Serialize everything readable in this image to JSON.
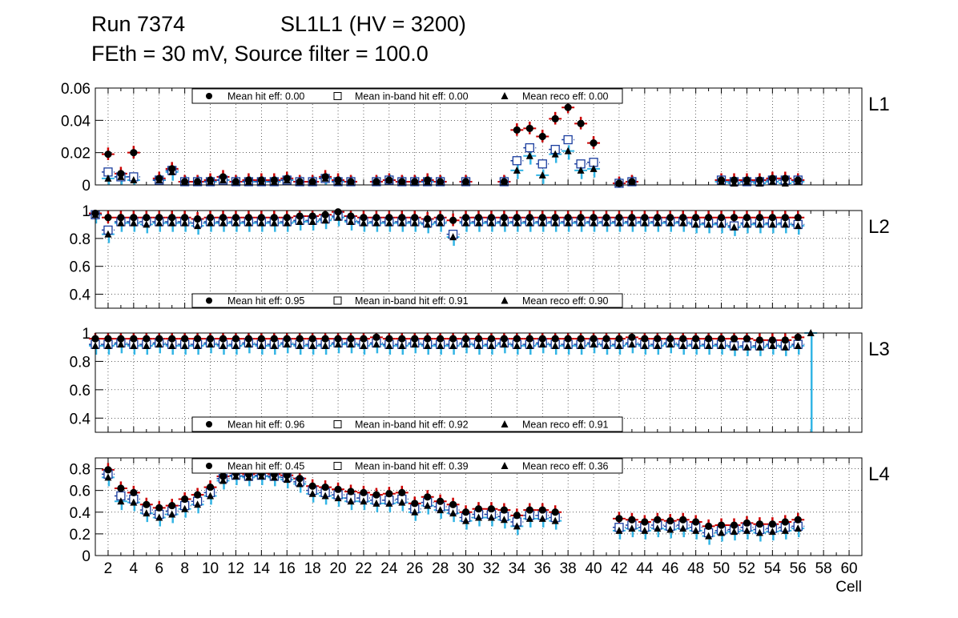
{
  "header": {
    "run": "Run 7374",
    "chamber": "SL1L1 (HV = 3200)",
    "settings": "FEth = 30 mV, Source filter = 100.0"
  },
  "colors": {
    "hit_marker": "#000000",
    "hit_error": "#cc0000",
    "inband_marker": "#1a3d9e",
    "reco_marker": "#000000",
    "reco_error": "#33b5e5",
    "grid": "#000000",
    "frame": "#000000"
  },
  "chart_data": {
    "type": "scatter",
    "xlabel": "Cell",
    "xlim": [
      1,
      61
    ],
    "xticks": [
      2,
      4,
      6,
      8,
      10,
      12,
      14,
      16,
      18,
      20,
      22,
      24,
      26,
      28,
      30,
      32,
      34,
      36,
      38,
      40,
      42,
      44,
      46,
      48,
      50,
      52,
      54,
      56,
      58,
      60
    ],
    "grid": true,
    "marker_legend": {
      "hit": "filled circle",
      "inband": "open square",
      "reco": "filled triangle"
    },
    "panels": [
      {
        "layer": "L1",
        "ylim": [
          0,
          0.06
        ],
        "yticks": [
          "0",
          "0.02",
          "0.04",
          "0.06"
        ],
        "legend": [
          "Mean hit  eff: 0.00",
          "Mean in-band hit eff: 0.00",
          "Mean reco eff: 0.00"
        ],
        "legend_position": "top",
        "x": [
          2,
          3,
          4,
          6,
          7,
          8,
          9,
          10,
          11,
          12,
          13,
          14,
          15,
          16,
          17,
          18,
          19,
          20,
          21,
          23,
          24,
          25,
          26,
          27,
          28,
          30,
          33,
          34,
          35,
          36,
          37,
          38,
          39,
          40,
          42,
          43,
          50,
          51,
          52,
          53,
          54,
          55,
          56
        ],
        "series": [
          {
            "name": "Mean hit  eff",
            "values": [
              0.019,
              0.007,
              0.02,
              0.004,
              0.01,
              0.002,
              0.002,
              0.003,
              0.005,
              0.002,
              0.003,
              0.003,
              0.003,
              0.004,
              0.002,
              0.002,
              0.005,
              0.003,
              0.002,
              0.002,
              0.003,
              0.002,
              0.002,
              0.003,
              0.002,
              0.002,
              0.002,
              0.034,
              0.035,
              0.03,
              0.041,
              0.048,
              0.038,
              0.026,
              0.001,
              0.002,
              0.003,
              0.003,
              0.003,
              0.003,
              0.004,
              0.004,
              0.003
            ]
          },
          {
            "name": "Mean in-band hit eff",
            "values": [
              0.008,
              0.005,
              0.005,
              0.003,
              0.009,
              0.002,
              0.002,
              0.002,
              0.003,
              0.002,
              0.002,
              0.002,
              0.002,
              0.003,
              0.002,
              0.002,
              0.004,
              0.002,
              0.002,
              0.002,
              0.003,
              0.002,
              0.002,
              0.002,
              0.002,
              0.002,
              0.002,
              0.015,
              0.023,
              0.013,
              0.022,
              0.028,
              0.013,
              0.014,
              0.001,
              0.002,
              0.003,
              0.002,
              0.002,
              0.002,
              0.003,
              0.003,
              0.003
            ]
          },
          {
            "name": "Mean reco eff",
            "values": [
              0.004,
              0.005,
              0.003,
              0.003,
              0.008,
              0.002,
              0.002,
              0.002,
              0.003,
              0.002,
              0.002,
              0.002,
              0.002,
              0.003,
              0.002,
              0.002,
              0.004,
              0.002,
              0.002,
              0.002,
              0.003,
              0.002,
              0.002,
              0.002,
              0.002,
              0.002,
              0.002,
              0.009,
              0.018,
              0.006,
              0.019,
              0.021,
              0.009,
              0.01,
              0.001,
              0.002,
              0.002,
              0.001,
              0.002,
              0.001,
              0.002,
              0.001,
              0.002
            ]
          }
        ]
      },
      {
        "layer": "L2",
        "ylim": [
          0.3,
          1.0
        ],
        "yticks": [
          "0.4",
          "0.6",
          "0.8",
          "1"
        ],
        "legend": [
          "Mean hit  eff: 0.95",
          "Mean in-band hit eff: 0.91",
          "Mean reco eff: 0.90"
        ],
        "legend_position": "bottom",
        "x": [
          1,
          2,
          3,
          4,
          5,
          6,
          7,
          8,
          9,
          10,
          11,
          12,
          13,
          14,
          15,
          16,
          17,
          18,
          19,
          20,
          21,
          22,
          23,
          24,
          25,
          26,
          27,
          28,
          29,
          30,
          31,
          32,
          33,
          34,
          35,
          36,
          37,
          38,
          39,
          40,
          41,
          42,
          43,
          44,
          45,
          46,
          47,
          48,
          49,
          50,
          51,
          52,
          53,
          54,
          55,
          56
        ],
        "series": [
          {
            "name": "Mean hit  eff",
            "values": [
              0.98,
              0.95,
              0.95,
              0.95,
              0.95,
              0.95,
              0.95,
              0.95,
              0.94,
              0.95,
              0.95,
              0.95,
              0.95,
              0.95,
              0.95,
              0.95,
              0.96,
              0.96,
              0.97,
              0.99,
              0.96,
              0.95,
              0.95,
              0.95,
              0.95,
              0.95,
              0.94,
              0.95,
              0.93,
              0.95,
              0.95,
              0.95,
              0.95,
              0.95,
              0.95,
              0.95,
              0.95,
              0.95,
              0.95,
              0.95,
              0.95,
              0.95,
              0.95,
              0.95,
              0.95,
              0.95,
              0.95,
              0.95,
              0.95,
              0.95,
              0.95,
              0.95,
              0.95,
              0.95,
              0.95,
              0.95
            ]
          },
          {
            "name": "Mean in-band hit eff",
            "values": [
              0.97,
              0.86,
              0.92,
              0.92,
              0.92,
              0.92,
              0.92,
              0.92,
              0.91,
              0.92,
              0.92,
              0.92,
              0.92,
              0.92,
              0.92,
              0.92,
              0.93,
              0.93,
              0.94,
              0.96,
              0.93,
              0.92,
              0.92,
              0.92,
              0.92,
              0.92,
              0.91,
              0.92,
              0.83,
              0.92,
              0.92,
              0.92,
              0.92,
              0.92,
              0.92,
              0.92,
              0.92,
              0.92,
              0.92,
              0.92,
              0.92,
              0.92,
              0.92,
              0.92,
              0.92,
              0.92,
              0.92,
              0.91,
              0.91,
              0.91,
              0.89,
              0.91,
              0.91,
              0.91,
              0.91,
              0.9
            ]
          },
          {
            "name": "Mean reco eff",
            "values": [
              0.97,
              0.83,
              0.91,
              0.91,
              0.9,
              0.91,
              0.91,
              0.91,
              0.89,
              0.91,
              0.91,
              0.91,
              0.91,
              0.91,
              0.91,
              0.91,
              0.92,
              0.92,
              0.93,
              0.95,
              0.92,
              0.91,
              0.91,
              0.91,
              0.91,
              0.91,
              0.9,
              0.91,
              0.81,
              0.91,
              0.91,
              0.91,
              0.91,
              0.91,
              0.91,
              0.91,
              0.91,
              0.91,
              0.91,
              0.91,
              0.91,
              0.91,
              0.91,
              0.91,
              0.91,
              0.91,
              0.91,
              0.9,
              0.9,
              0.9,
              0.88,
              0.9,
              0.9,
              0.9,
              0.9,
              0.89
            ]
          }
        ]
      },
      {
        "layer": "L3",
        "ylim": [
          0.3,
          1.0
        ],
        "yticks": [
          "0.4",
          "0.6",
          "0.8",
          "1"
        ],
        "legend": [
          "Mean hit  eff: 0.96",
          "Mean in-band hit eff: 0.92",
          "Mean reco eff: 0.91"
        ],
        "legend_position": "bottom",
        "x": [
          1,
          2,
          3,
          4,
          5,
          6,
          7,
          8,
          9,
          10,
          11,
          12,
          13,
          14,
          15,
          16,
          17,
          18,
          19,
          20,
          21,
          22,
          23,
          24,
          25,
          26,
          27,
          28,
          29,
          30,
          31,
          32,
          33,
          34,
          35,
          36,
          37,
          38,
          39,
          40,
          41,
          42,
          43,
          44,
          45,
          46,
          47,
          48,
          49,
          50,
          51,
          52,
          53,
          54,
          55,
          56,
          57
        ],
        "series": [
          {
            "name": "Mean hit  eff",
            "values": [
              0.96,
              0.96,
              0.96,
              0.96,
              0.96,
              0.96,
              0.96,
              0.96,
              0.96,
              0.96,
              0.96,
              0.96,
              0.96,
              0.96,
              0.96,
              0.96,
              0.96,
              0.96,
              0.96,
              0.96,
              0.96,
              0.96,
              0.97,
              0.96,
              0.96,
              0.96,
              0.96,
              0.96,
              0.96,
              0.96,
              0.96,
              0.96,
              0.96,
              0.96,
              0.96,
              0.96,
              0.96,
              0.96,
              0.96,
              0.96,
              0.96,
              0.96,
              0.97,
              0.96,
              0.96,
              0.96,
              0.96,
              0.96,
              0.96,
              0.96,
              0.96,
              0.96,
              0.95,
              0.95,
              0.95,
              0.97,
              null
            ]
          },
          {
            "name": "Mean in-band hit eff",
            "values": [
              0.92,
              0.92,
              0.93,
              0.92,
              0.92,
              0.93,
              0.92,
              0.92,
              0.92,
              0.93,
              0.92,
              0.92,
              0.93,
              0.92,
              0.92,
              0.93,
              0.92,
              0.92,
              0.92,
              0.93,
              0.93,
              0.92,
              0.93,
              0.92,
              0.92,
              0.93,
              0.92,
              0.92,
              0.92,
              0.93,
              0.92,
              0.92,
              0.93,
              0.92,
              0.92,
              0.93,
              0.92,
              0.92,
              0.92,
              0.93,
              0.92,
              0.92,
              0.93,
              0.92,
              0.92,
              0.93,
              0.92,
              0.92,
              0.92,
              0.92,
              0.91,
              0.91,
              0.91,
              0.92,
              0.91,
              0.92,
              null
            ]
          },
          {
            "name": "Mean reco eff",
            "values": [
              0.91,
              0.91,
              0.92,
              0.91,
              0.91,
              0.92,
              0.91,
              0.91,
              0.91,
              0.92,
              0.91,
              0.91,
              0.92,
              0.91,
              0.91,
              0.92,
              0.91,
              0.91,
              0.91,
              0.92,
              0.92,
              0.91,
              0.92,
              0.91,
              0.91,
              0.92,
              0.91,
              0.91,
              0.91,
              0.92,
              0.91,
              0.91,
              0.92,
              0.91,
              0.91,
              0.92,
              0.91,
              0.91,
              0.91,
              0.92,
              0.91,
              0.91,
              0.92,
              0.91,
              0.91,
              0.92,
              0.91,
              0.91,
              0.91,
              0.91,
              0.9,
              0.9,
              0.9,
              0.91,
              0.9,
              0.91,
              1.0
            ]
          }
        ]
      },
      {
        "layer": "L4",
        "ylim": [
          0,
          0.9
        ],
        "yticks": [
          "0",
          "0.2",
          "0.4",
          "0.6",
          "0.8"
        ],
        "legend": [
          "Mean hit  eff: 0.45",
          "Mean in-band hit eff: 0.39",
          "Mean reco eff: 0.36"
        ],
        "legend_position": "top",
        "x": [
          2,
          3,
          4,
          5,
          6,
          7,
          8,
          9,
          10,
          11,
          12,
          13,
          14,
          15,
          16,
          17,
          18,
          19,
          20,
          21,
          22,
          23,
          24,
          25,
          26,
          27,
          28,
          29,
          30,
          31,
          32,
          33,
          34,
          35,
          36,
          37,
          42,
          43,
          44,
          45,
          46,
          47,
          48,
          49,
          50,
          51,
          52,
          53,
          54,
          55,
          56
        ],
        "series": [
          {
            "name": "Mean hit  eff",
            "values": [
              0.79,
              0.62,
              0.58,
              0.47,
              0.44,
              0.46,
              0.52,
              0.56,
              0.63,
              0.73,
              0.76,
              0.75,
              0.76,
              0.75,
              0.74,
              0.71,
              0.64,
              0.63,
              0.61,
              0.59,
              0.58,
              0.56,
              0.57,
              0.58,
              0.48,
              0.54,
              0.5,
              0.47,
              0.4,
              0.43,
              0.43,
              0.42,
              0.37,
              0.42,
              0.42,
              0.4,
              0.34,
              0.33,
              0.31,
              0.33,
              0.32,
              0.33,
              0.31,
              0.27,
              0.28,
              0.28,
              0.3,
              0.29,
              0.29,
              0.31,
              0.33
            ]
          },
          {
            "name": "Mean in-band hit eff",
            "values": [
              0.75,
              0.55,
              0.52,
              0.42,
              0.38,
              0.41,
              0.46,
              0.5,
              0.58,
              0.71,
              0.74,
              0.73,
              0.74,
              0.73,
              0.72,
              0.68,
              0.6,
              0.58,
              0.56,
              0.53,
              0.53,
              0.51,
              0.51,
              0.52,
              0.43,
              0.49,
              0.45,
              0.42,
              0.35,
              0.38,
              0.38,
              0.36,
              0.31,
              0.37,
              0.37,
              0.35,
              0.26,
              0.28,
              0.26,
              0.28,
              0.27,
              0.28,
              0.26,
              0.21,
              0.23,
              0.24,
              0.26,
              0.24,
              0.25,
              0.26,
              0.27
            ]
          },
          {
            "name": "Mean reco eff",
            "values": [
              0.72,
              0.5,
              0.49,
              0.39,
              0.35,
              0.38,
              0.43,
              0.47,
              0.55,
              0.69,
              0.73,
              0.72,
              0.73,
              0.72,
              0.7,
              0.66,
              0.57,
              0.55,
              0.53,
              0.5,
              0.5,
              0.48,
              0.48,
              0.49,
              0.4,
              0.46,
              0.42,
              0.39,
              0.32,
              0.35,
              0.35,
              0.33,
              0.27,
              0.34,
              0.34,
              0.32,
              0.23,
              0.25,
              0.23,
              0.25,
              0.24,
              0.25,
              0.23,
              0.18,
              0.21,
              0.22,
              0.23,
              0.21,
              0.22,
              0.23,
              0.25
            ]
          }
        ]
      }
    ]
  }
}
